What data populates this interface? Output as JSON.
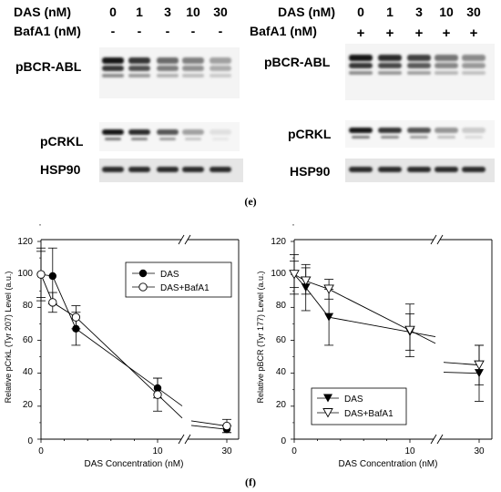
{
  "panel_e": {
    "caption": "(e)",
    "blot_left": {
      "das_label": "DAS (nM)",
      "das_values": [
        "0",
        "1",
        "3",
        "10",
        "30"
      ],
      "bafa1_label": "BafA1 (nM)",
      "bafa1_values": [
        "-",
        "-",
        "-",
        "-",
        "-"
      ],
      "rows": [
        "pBCR-ABL",
        "pCRKL",
        "HSP90"
      ],
      "pbcr_intensity": [
        1.0,
        0.85,
        0.6,
        0.5,
        0.35
      ],
      "pcrkl_intensity": [
        1.0,
        0.9,
        0.7,
        0.35,
        0.05
      ],
      "hsp90_intensity": [
        0.9,
        0.9,
        0.9,
        0.9,
        0.9
      ]
    },
    "blot_right": {
      "das_label": "DAS (nM)",
      "das_values": [
        "0",
        "1",
        "3",
        "10",
        "30"
      ],
      "bafa1_label": "BafA1 (nM)",
      "bafa1_values": [
        "+",
        "+",
        "+",
        "+",
        "+"
      ],
      "rows": [
        "pBCR-ABL",
        "pCRKL",
        "HSP90"
      ],
      "pbcr_intensity": [
        1.0,
        0.9,
        0.8,
        0.55,
        0.45
      ],
      "pcrkl_intensity": [
        1.0,
        0.85,
        0.7,
        0.4,
        0.15
      ],
      "hsp90_intensity": [
        0.9,
        0.9,
        0.9,
        0.9,
        0.9
      ]
    }
  },
  "panel_f": {
    "caption": "(f)"
  },
  "chart_data": [
    {
      "type": "line",
      "xlabel": "DAS Concentration (nM)",
      "ylabel": "Relative pCrkL (Tyr 207) Level (a.u.)",
      "x_ticks": [
        "0",
        "10",
        "30"
      ],
      "y_ticks": [
        "0",
        "20",
        "40",
        "60",
        "80",
        "100",
        "120"
      ],
      "ylim": [
        0,
        120
      ],
      "broken_x_axis": true,
      "legend_position": "top-right",
      "series": [
        {
          "name": "DAS",
          "marker": "filled-circle",
          "x": [
            0,
            1,
            3,
            10,
            30
          ],
          "y": [
            100,
            99,
            67,
            31,
            6
          ],
          "err": [
            16,
            17,
            10,
            6,
            2
          ]
        },
        {
          "name": "DAS+BafA1",
          "marker": "open-circle",
          "x": [
            0,
            1,
            3,
            10,
            30
          ],
          "y": [
            100,
            83,
            74,
            27,
            8
          ],
          "err": [
            14,
            6,
            7,
            10,
            4
          ]
        }
      ]
    },
    {
      "type": "line",
      "xlabel": "DAS Concentration (nM)",
      "ylabel": "Relative pBCR (Tyr 177) Level (a.u.)",
      "x_ticks": [
        "0",
        "10",
        "30"
      ],
      "y_ticks": [
        "0",
        "20",
        "40",
        "60",
        "80",
        "100",
        "120"
      ],
      "ylim": [
        0,
        120
      ],
      "broken_x_axis": true,
      "legend_position": "bottom-right",
      "series": [
        {
          "name": "DAS",
          "marker": "filled-triangle-down",
          "x": [
            0,
            1,
            3,
            10,
            30
          ],
          "y": [
            100,
            92,
            74,
            65,
            40
          ],
          "err": [
            12,
            14,
            17,
            11,
            17
          ]
        },
        {
          "name": "DAS+BafA1",
          "marker": "open-triangle-down",
          "x": [
            0,
            1,
            3,
            10,
            30
          ],
          "y": [
            100,
            96,
            91,
            66,
            45
          ],
          "err": [
            8,
            8,
            6,
            16,
            12
          ]
        }
      ]
    }
  ]
}
